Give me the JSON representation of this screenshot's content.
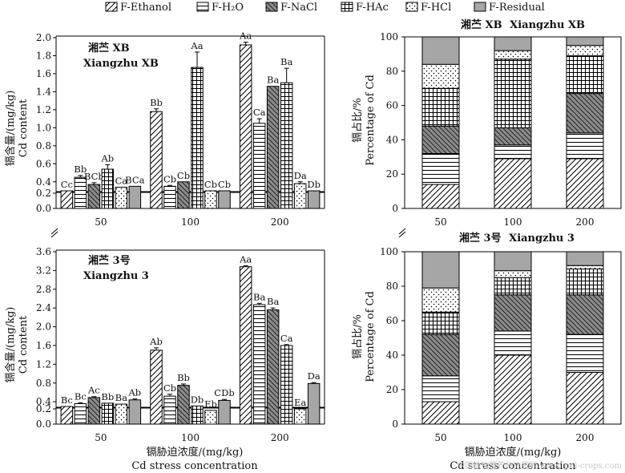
{
  "legend": {
    "items": [
      "F-Ethanol",
      "F-H₂O",
      "F-NaCl",
      "F-HAc",
      "F-HCl",
      "F-Residual"
    ]
  },
  "xlabel_cn": "镉胁迫浓度/(mg/kg)",
  "xlabel_en": "Cd stress concentration",
  "ylabel_content_cn": "镉含量/(mg/kg)",
  "ylabel_content_en": "Cd content",
  "ylabel_pct_cn": "镉占比/%",
  "ylabel_pct_en": "Percentage of Cd",
  "watermark": "中国植物营养与施肥网 www.ipni-crops.com",
  "colors": {
    "axis": "#000000",
    "residual": "#a6a6a6",
    "bar_fill": "#ffffff"
  },
  "chart_data": [
    {
      "id": "content-xb",
      "type": "bar",
      "title_cn": "湘苎 XB",
      "title_en": "Xiangzhu XB",
      "categories": [
        "50",
        "100",
        "200"
      ],
      "y_axis_break": {
        "lower": [
          0,
          0.2
        ],
        "upper_start": 0.3
      },
      "yticks": [
        0,
        0.2,
        0.4,
        0.6,
        0.8,
        1.0,
        1.2,
        1.4,
        1.6,
        1.8,
        2.0
      ],
      "ylim": [
        0,
        2.0
      ],
      "series": [
        {
          "name": "F-Ethanol",
          "values": [
            0.27,
            1.18,
            1.92
          ],
          "errors": [
            0.0,
            0.03,
            0.03
          ],
          "labels": [
            "Cc",
            "Bb",
            "Aa"
          ]
        },
        {
          "name": "F-H2O",
          "values": [
            0.45,
            0.35,
            1.05
          ],
          "errors": [
            0.02,
            0.01,
            0.05
          ],
          "labels": [
            "Bb",
            "Cb",
            "Ca"
          ]
        },
        {
          "name": "F-NaCl",
          "values": [
            0.37,
            0.4,
            1.46
          ],
          "errors": [
            0.02,
            0.0,
            0.0
          ],
          "labels": [
            "BCb",
            "Cb",
            "Ba"
          ]
        },
        {
          "name": "F-HAc",
          "values": [
            0.54,
            1.67,
            1.5
          ],
          "errors": [
            0.05,
            0.17,
            0.16
          ],
          "labels": [
            "Ab",
            "Aa",
            "Ba"
          ]
        },
        {
          "name": "F-HCl",
          "values": [
            0.34,
            0.26,
            0.38
          ],
          "errors": [
            0.0,
            0.0,
            0.02
          ],
          "labels": [
            "Ca",
            "Cb",
            "Da"
          ]
        },
        {
          "name": "F-Residual",
          "values": [
            0.35,
            0.27,
            0.27
          ],
          "errors": [
            0.0,
            0.0,
            0.0
          ],
          "labels": [
            "BCa",
            "Cb",
            "Db"
          ]
        }
      ]
    },
    {
      "id": "pct-xb",
      "type": "bar",
      "stacked": true,
      "title_cn": "湘苎 XB",
      "title_en": "Xiangzhu XB",
      "categories": [
        "50",
        "100",
        "200"
      ],
      "yticks": [
        0,
        20,
        40,
        60,
        80,
        100
      ],
      "ylim": [
        0,
        100
      ],
      "series": [
        {
          "name": "F-Ethanol",
          "values": [
            14,
            29,
            29
          ]
        },
        {
          "name": "F-H2O",
          "values": [
            18,
            8,
            15
          ]
        },
        {
          "name": "F-NaCl",
          "values": [
            16,
            10,
            23
          ]
        },
        {
          "name": "F-HAc",
          "values": [
            22,
            40,
            22
          ]
        },
        {
          "name": "F-HCl",
          "values": [
            14,
            5,
            6
          ]
        },
        {
          "name": "F-Residual",
          "values": [
            16,
            8,
            5
          ]
        }
      ]
    },
    {
      "id": "content-3",
      "type": "bar",
      "title_cn": "湘苎 3号",
      "title_en": "Xiangzhu 3",
      "categories": [
        "50",
        "100",
        "200"
      ],
      "y_axis_break": {
        "lower": [
          0,
          0.2
        ],
        "upper_start": 0.3
      },
      "yticks": [
        0,
        0.2,
        0.4,
        0.8,
        1.2,
        1.6,
        2.0,
        2.4,
        2.8,
        3.2,
        3.6
      ],
      "ylim": [
        0,
        3.6
      ],
      "series": [
        {
          "name": "F-Ethanol",
          "values": [
            0.28,
            1.5,
            3.28
          ],
          "errors": [
            0.0,
            0.05,
            0.02
          ],
          "labels": [
            "Bc",
            "Ab",
            "Aa"
          ]
        },
        {
          "name": "F-H2O",
          "values": [
            0.36,
            0.52,
            2.47
          ],
          "errors": [
            0.02,
            0.04,
            0.03
          ],
          "labels": [
            "Bc",
            "Cb",
            "Ba"
          ]
        },
        {
          "name": "F-NaCl",
          "values": [
            0.49,
            0.75,
            2.36
          ],
          "errors": [
            0.02,
            0.03,
            0.04
          ],
          "labels": [
            "Ac",
            "Bb",
            "Ba"
          ]
        },
        {
          "name": "F-HAc",
          "values": [
            0.37,
            0.31,
            1.6
          ],
          "errors": [
            0.0,
            0.0,
            0.02
          ],
          "labels": [
            "Bb",
            "Db",
            "Ca"
          ]
        },
        {
          "name": "F-HCl",
          "values": [
            0.35,
            0.18,
            0.2
          ],
          "errors": [
            0.0,
            0.0,
            0.0
          ],
          "labels": [
            "Ba",
            "Eb",
            "Ea"
          ]
        },
        {
          "name": "F-Residual",
          "values": [
            0.44,
            0.43,
            0.79
          ],
          "errors": [
            0.02,
            0.02,
            0.02
          ],
          "labels": [
            "Ab",
            "CDb",
            "Da"
          ]
        }
      ]
    },
    {
      "id": "pct-3",
      "type": "bar",
      "stacked": true,
      "title_cn": "湘苎 3号",
      "title_en": "Xiangzhu 3",
      "categories": [
        "50",
        "100",
        "200"
      ],
      "yticks": [
        0,
        20,
        40,
        60,
        80,
        100
      ],
      "ylim": [
        0,
        100
      ],
      "series": [
        {
          "name": "F-Ethanol",
          "values": [
            13,
            40,
            30
          ]
        },
        {
          "name": "F-H2O",
          "values": [
            15,
            14,
            22
          ]
        },
        {
          "name": "F-NaCl",
          "values": [
            24,
            21,
            23
          ]
        },
        {
          "name": "F-HAc",
          "values": [
            13,
            10,
            15
          ]
        },
        {
          "name": "F-HCl",
          "values": [
            14,
            4,
            2
          ]
        },
        {
          "name": "F-Residual",
          "values": [
            21,
            11,
            8
          ]
        }
      ]
    }
  ]
}
